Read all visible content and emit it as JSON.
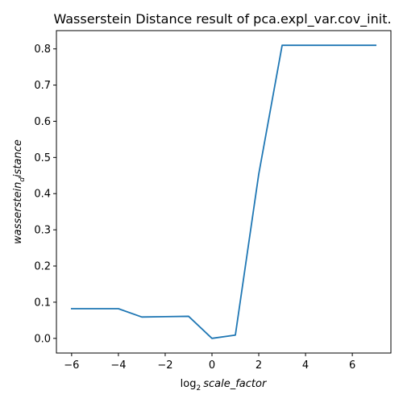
{
  "chart_data": {
    "type": "line",
    "title": "Wasserstein Distance result of pca.expl_var.cov_init.",
    "xlabel": {
      "prefix": "log",
      "subscript": "2",
      "text": "scale_factor"
    },
    "ylabel": {
      "text": "wasserstein",
      "subscript": "d",
      "suffix": "istance"
    },
    "xlim": [
      -6.65,
      7.65
    ],
    "ylim": [
      -0.0405,
      0.8505
    ],
    "xticks": [
      -6,
      -4,
      -2,
      0,
      2,
      4,
      6
    ],
    "xtick_labels": [
      "−6",
      "−4",
      "−2",
      "0",
      "2",
      "4",
      "6"
    ],
    "yticks": [
      0.0,
      0.1,
      0.2,
      0.3,
      0.4,
      0.5,
      0.6,
      0.7,
      0.8
    ],
    "ytick_labels": [
      "0.0",
      "0.1",
      "0.2",
      "0.3",
      "0.4",
      "0.5",
      "0.6",
      "0.7",
      "0.8"
    ],
    "grid": false,
    "legend": null,
    "series": [
      {
        "color": "#1f77b4",
        "x": [
          -6,
          -5,
          -4,
          -3,
          -2,
          -1,
          0,
          1,
          2,
          3,
          4,
          5,
          6,
          7
        ],
        "y": [
          0.082,
          0.082,
          0.082,
          0.059,
          0.06,
          0.061,
          0.0,
          0.009,
          0.454,
          0.81,
          0.81,
          0.81,
          0.81,
          0.81
        ]
      }
    ]
  }
}
